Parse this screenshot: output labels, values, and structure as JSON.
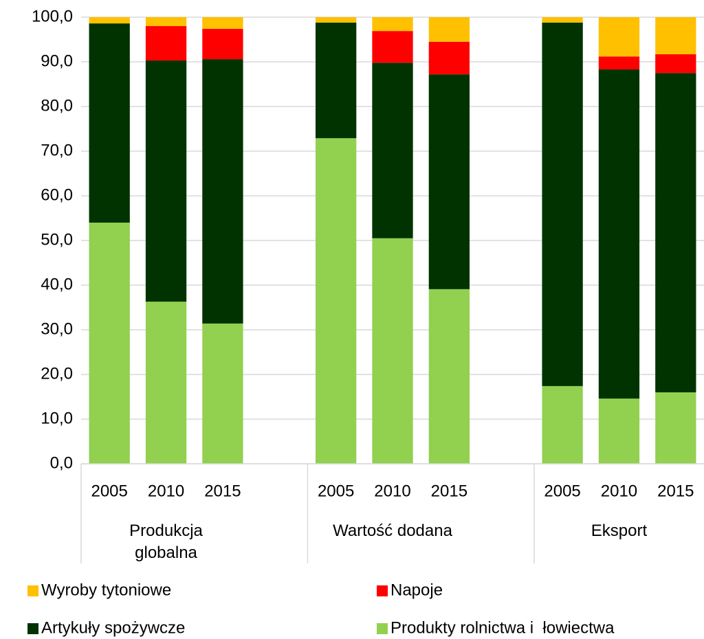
{
  "chart_data": {
    "type": "stacked_bar",
    "groups": [
      {
        "label": "Produkcja globalna",
        "categories": [
          "2005",
          "2010",
          "2015"
        ]
      },
      {
        "label": "Wartość dodana",
        "categories": [
          "2005",
          "2010",
          "2015"
        ]
      },
      {
        "label": "Eksport",
        "categories": [
          "2005",
          "2010",
          "2015"
        ]
      }
    ],
    "series": [
      {
        "name": "Wyroby tytoniowe",
        "color": "#FFC000",
        "values": [
          1.4,
          2.0,
          2.6,
          1.2,
          3.1,
          5.5,
          1.2,
          8.8,
          8.3
        ]
      },
      {
        "name": "Napoje",
        "color": "#FF0000",
        "values": [
          0,
          7.7,
          6.8,
          0,
          7.1,
          7.3,
          0,
          2.9,
          4.2
        ]
      },
      {
        "name": "Artykuły spożywcze",
        "color": "#003300",
        "values": [
          44.6,
          54.0,
          59.2,
          25.9,
          39.3,
          48.1,
          81.4,
          73.7,
          71.5
        ]
      },
      {
        "name": "Produkty rolnictwa i  łowiectwa",
        "color": "#92D050",
        "values": [
          54.0,
          36.3,
          31.4,
          72.9,
          50.5,
          39.1,
          17.4,
          14.6,
          16.0
        ]
      }
    ],
    "ylim": [
      0,
      100
    ],
    "yticks": [
      {
        "value": 0,
        "label": "0,0"
      },
      {
        "value": 10,
        "label": "10,0"
      },
      {
        "value": 20,
        "label": "20,0"
      },
      {
        "value": 30,
        "label": "30,0"
      },
      {
        "value": 40,
        "label": "40,0"
      },
      {
        "value": 50,
        "label": "50,0"
      },
      {
        "value": 60,
        "label": "60,0"
      },
      {
        "value": 70,
        "label": "70,0"
      },
      {
        "value": 80,
        "label": "80,0"
      },
      {
        "value": 90,
        "label": "90,0"
      },
      {
        "value": 100,
        "label": "100,0"
      }
    ],
    "grid": true
  }
}
